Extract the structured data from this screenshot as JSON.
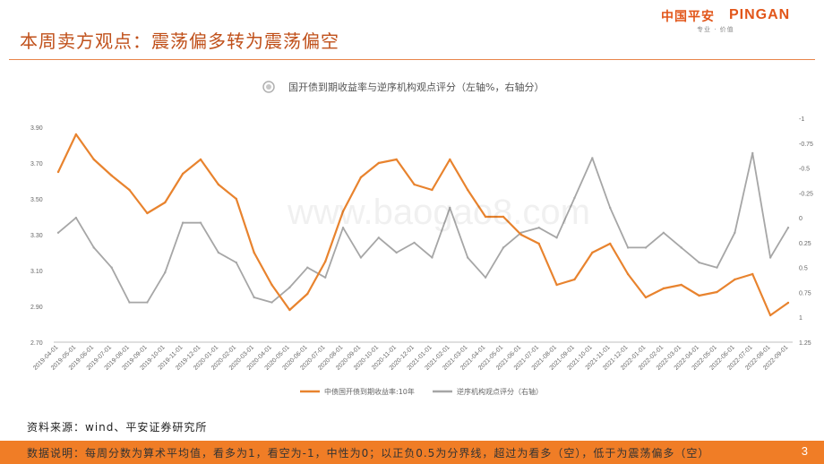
{
  "header": {
    "title": "本周卖方观点：震荡偏多转为震荡偏空",
    "logo_cn": "中国平安",
    "logo_en": "PINGAN",
    "logo_tagline": "专业 · 价值"
  },
  "footer": {
    "source": "资料来源：wind、平安证券研究所",
    "note": "数据说明：每周分数为算术平均值，看多为1，看空为-1，中性为0；以正负0.5为分界线，超过为看多（空），低于为震荡偏多（空）",
    "page_number": "3"
  },
  "colors": {
    "accent": "#e2561a",
    "series1": "#e8832e",
    "series2": "#a6a6a6",
    "bar": "#f07d26"
  },
  "chart_data": {
    "type": "line",
    "title": "国开债到期收益率与逆序机构观点评分（左轴%，右轴分）",
    "x": [
      "2019-04-01",
      "2019-05-01",
      "2019-06-01",
      "2019-07-01",
      "2019-08-01",
      "2019-09-01",
      "2019-10-01",
      "2019-11-01",
      "2019-12-01",
      "2020-01-01",
      "2020-02-01",
      "2020-03-01",
      "2020-04-01",
      "2020-05-01",
      "2020-06-01",
      "2020-07-01",
      "2020-08-01",
      "2020-09-01",
      "2020-10-01",
      "2020-11-01",
      "2020-12-01",
      "2021-01-01",
      "2021-02-01",
      "2021-03-01",
      "2021-04-01",
      "2021-05-01",
      "2021-06-01",
      "2021-07-01",
      "2021-08-01",
      "2021-09-01",
      "2021-10-01",
      "2021-11-01",
      "2021-12-01",
      "2022-01-01",
      "2022-02-01",
      "2022-03-01",
      "2022-04-01",
      "2022-05-01",
      "2022-06-01",
      "2022-07-01",
      "2022-08-01",
      "2022-09-01"
    ],
    "left_axis": {
      "ticks": [
        "2.70",
        "2.90",
        "3.10",
        "3.30",
        "3.50",
        "3.70",
        "3.90"
      ],
      "ylim": [
        2.7,
        3.95
      ]
    },
    "right_axis": {
      "ticks": [
        "-1",
        "-0.75",
        "-0.5",
        "-0.25",
        "0",
        "0.25",
        "0.5",
        "0.75",
        "1",
        "1.25"
      ],
      "ylim": [
        -1.0,
        1.25
      ],
      "inverted": true
    },
    "series": [
      {
        "name": "中债国开债到期收益率:10年",
        "axis": "left",
        "values": [
          3.65,
          3.86,
          3.72,
          3.63,
          3.55,
          3.42,
          3.48,
          3.64,
          3.72,
          3.58,
          3.5,
          3.2,
          3.02,
          2.88,
          2.97,
          3.15,
          3.43,
          3.62,
          3.7,
          3.72,
          3.58,
          3.55,
          3.72,
          3.55,
          3.4,
          3.4,
          3.3,
          3.25,
          3.02,
          3.05,
          3.2,
          3.25,
          3.08,
          2.95,
          3.0,
          3.02,
          2.96,
          2.98,
          3.05,
          3.08,
          2.85,
          2.92
        ]
      },
      {
        "name": "逆序机构观点评分（右轴）",
        "axis": "right",
        "values": [
          0.15,
          0.0,
          0.3,
          0.5,
          0.85,
          0.85,
          0.55,
          0.05,
          0.05,
          0.35,
          0.45,
          0.8,
          0.85,
          0.7,
          0.5,
          0.6,
          0.1,
          0.4,
          0.2,
          0.35,
          0.25,
          0.4,
          -0.1,
          0.4,
          0.6,
          0.3,
          0.15,
          0.1,
          0.2,
          -0.2,
          -0.6,
          -0.1,
          0.3,
          0.3,
          0.15,
          0.3,
          0.45,
          0.5,
          0.15,
          -0.65,
          0.4,
          0.1
        ]
      }
    ]
  }
}
